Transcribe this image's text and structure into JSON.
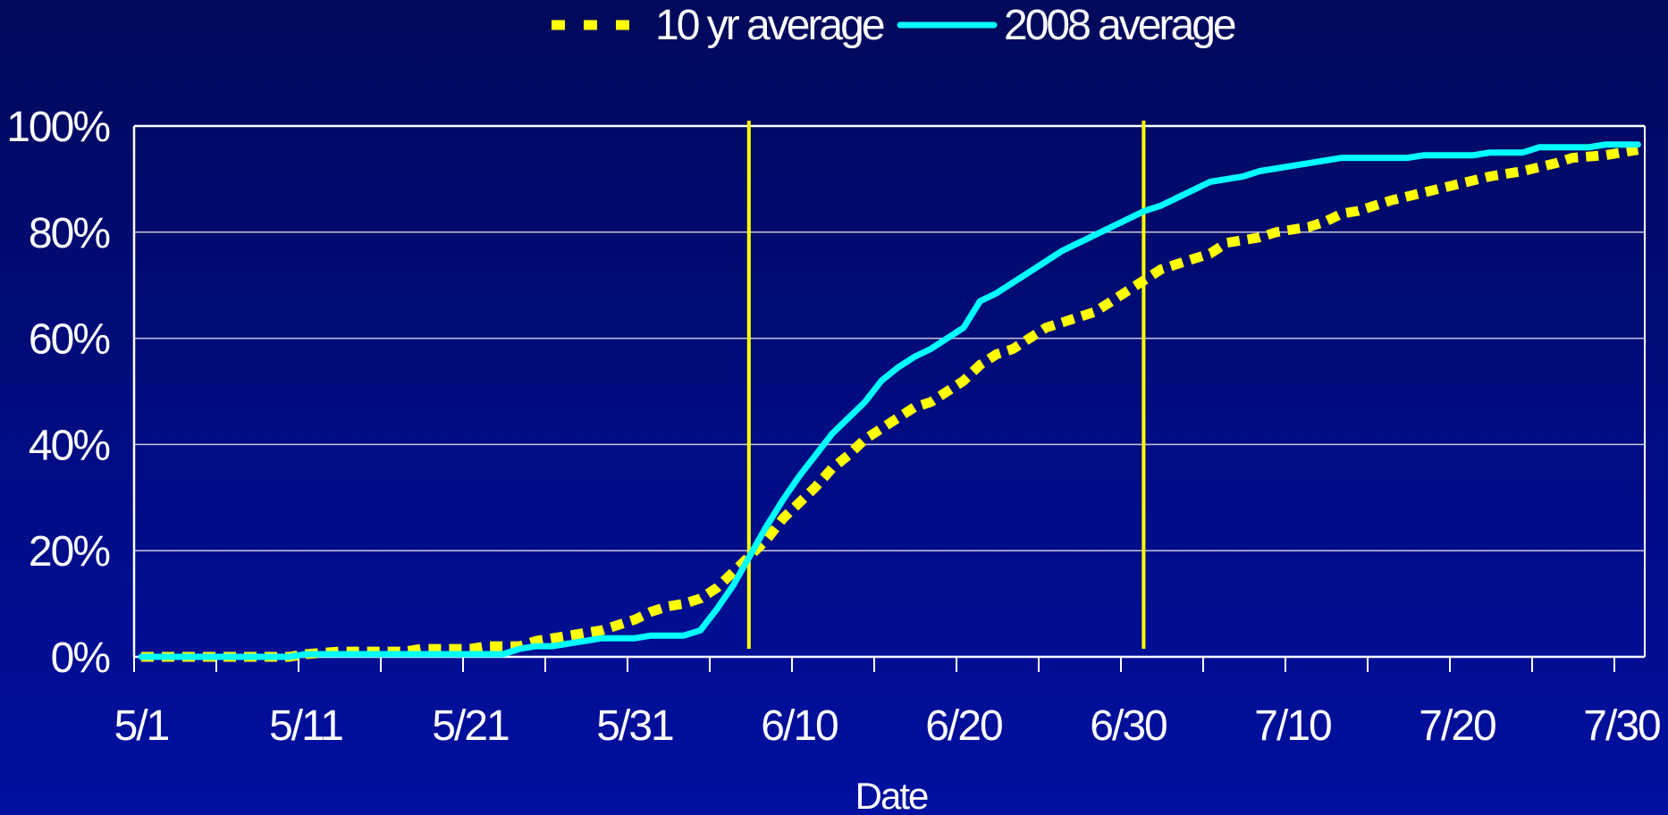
{
  "chart_data": {
    "type": "line",
    "title": "",
    "xlabel": "Date",
    "ylabel": "",
    "x_tick_labels": [
      "5/1",
      "5/11",
      "5/21",
      "5/31",
      "6/10",
      "6/20",
      "6/30",
      "7/10",
      "7/20",
      "7/30"
    ],
    "y_tick_labels": [
      "0%",
      "20%",
      "40%",
      "60%",
      "80%",
      "100%"
    ],
    "x_unit": "day of year starting 5/1",
    "ylim": [
      0,
      100
    ],
    "grid": "horizontal",
    "legend_position": "top-center",
    "reference_lines_x": [
      "6/7",
      "7/1"
    ],
    "reference_line_color": "#ffff00",
    "series": [
      {
        "name": "10 yr average",
        "color": "#ffff00",
        "style": "dashed",
        "points": [
          [
            "5/1",
            0
          ],
          [
            "5/6",
            0
          ],
          [
            "5/10",
            0
          ],
          [
            "5/11",
            0.5
          ],
          [
            "5/13",
            1
          ],
          [
            "5/17",
            1
          ],
          [
            "5/18",
            1.5
          ],
          [
            "5/21",
            1.5
          ],
          [
            "5/22",
            2
          ],
          [
            "5/24",
            2
          ],
          [
            "5/25",
            3
          ],
          [
            "5/27",
            4
          ],
          [
            "5/29",
            5
          ],
          [
            "5/31",
            7
          ],
          [
            "6/1",
            8.5
          ],
          [
            "6/2",
            9.5
          ],
          [
            "6/3",
            10
          ],
          [
            "6/4",
            11
          ],
          [
            "6/5",
            13
          ],
          [
            "6/6",
            16
          ],
          [
            "6/7",
            19
          ],
          [
            "6/8",
            22
          ],
          [
            "6/9",
            26
          ],
          [
            "6/10",
            29
          ],
          [
            "6/11",
            32
          ],
          [
            "6/12",
            35.5
          ],
          [
            "6/13",
            38
          ],
          [
            "6/14",
            41
          ],
          [
            "6/15",
            43
          ],
          [
            "6/16",
            45
          ],
          [
            "6/17",
            47
          ],
          [
            "6/18",
            48
          ],
          [
            "6/19",
            50
          ],
          [
            "6/20",
            52
          ],
          [
            "6/21",
            55
          ],
          [
            "6/22",
            57
          ],
          [
            "6/23",
            58
          ],
          [
            "6/24",
            60
          ],
          [
            "6/25",
            62
          ],
          [
            "6/26",
            63
          ],
          [
            "6/27",
            64
          ],
          [
            "6/28",
            65
          ],
          [
            "6/29",
            67
          ],
          [
            "6/30",
            69
          ],
          [
            "7/1",
            71
          ],
          [
            "7/2",
            73
          ],
          [
            "7/3",
            74
          ],
          [
            "7/4",
            75
          ],
          [
            "7/5",
            76
          ],
          [
            "7/6",
            78
          ],
          [
            "7/8",
            79
          ],
          [
            "7/9",
            80
          ],
          [
            "7/11",
            81
          ],
          [
            "7/12",
            82
          ],
          [
            "7/13",
            83.5
          ],
          [
            "7/14",
            84
          ],
          [
            "7/16",
            86
          ],
          [
            "7/18",
            87.5
          ],
          [
            "7/20",
            89
          ],
          [
            "7/22",
            90.5
          ],
          [
            "7/24",
            91.5
          ],
          [
            "7/26",
            93
          ],
          [
            "7/27",
            94
          ],
          [
            "7/29",
            94.5
          ],
          [
            "7/30",
            95
          ],
          [
            "7/31",
            95.5
          ]
        ]
      },
      {
        "name": "2008 average",
        "color": "#00ffff",
        "style": "solid",
        "points": [
          [
            "5/1",
            0
          ],
          [
            "5/10",
            0
          ],
          [
            "5/11",
            0.5
          ],
          [
            "5/23",
            0.5
          ],
          [
            "5/24",
            1.5
          ],
          [
            "5/25",
            2
          ],
          [
            "5/26",
            2
          ],
          [
            "5/28",
            3
          ],
          [
            "5/29",
            3.5
          ],
          [
            "5/31",
            3.5
          ],
          [
            "6/1",
            4
          ],
          [
            "6/3",
            4
          ],
          [
            "6/4",
            5
          ],
          [
            "6/5",
            9
          ],
          [
            "6/6",
            13.5
          ],
          [
            "6/7",
            19
          ],
          [
            "6/8",
            24.5
          ],
          [
            "6/9",
            29.5
          ],
          [
            "6/10",
            34
          ],
          [
            "6/11",
            38
          ],
          [
            "6/12",
            42
          ],
          [
            "6/13",
            45
          ],
          [
            "6/14",
            48
          ],
          [
            "6/15",
            52
          ],
          [
            "6/16",
            54.5
          ],
          [
            "6/17",
            56.5
          ],
          [
            "6/18",
            58
          ],
          [
            "6/19",
            60
          ],
          [
            "6/20",
            62
          ],
          [
            "6/21",
            67
          ],
          [
            "6/22",
            68.5
          ],
          [
            "6/23",
            70.5
          ],
          [
            "6/24",
            72.5
          ],
          [
            "6/25",
            74.5
          ],
          [
            "6/26",
            76.5
          ],
          [
            "6/27",
            78
          ],
          [
            "6/28",
            79.5
          ],
          [
            "6/29",
            81
          ],
          [
            "6/30",
            82.5
          ],
          [
            "7/1",
            84
          ],
          [
            "7/2",
            85
          ],
          [
            "7/3",
            86.5
          ],
          [
            "7/4",
            88
          ],
          [
            "7/5",
            89.5
          ],
          [
            "7/6",
            90
          ],
          [
            "7/7",
            90.5
          ],
          [
            "7/8",
            91.5
          ],
          [
            "7/9",
            92
          ],
          [
            "7/11",
            93
          ],
          [
            "7/12",
            93.5
          ],
          [
            "7/13",
            94
          ],
          [
            "7/17",
            94
          ],
          [
            "7/18",
            94.5
          ],
          [
            "7/21",
            94.5
          ],
          [
            "7/22",
            95
          ],
          [
            "7/24",
            95
          ],
          [
            "7/25",
            96
          ],
          [
            "7/28",
            96
          ],
          [
            "7/29",
            96.5
          ],
          [
            "7/31",
            96.5
          ]
        ]
      }
    ]
  }
}
